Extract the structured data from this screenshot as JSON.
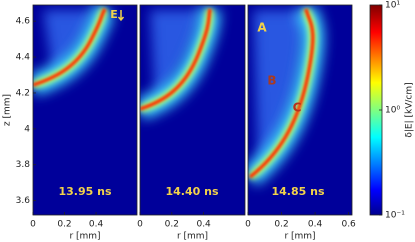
{
  "chart_data": [
    {
      "type": "heatmap",
      "xlabel": "r [mm]",
      "ylabel": "z [mm]",
      "xlim": [
        0,
        0.66
      ],
      "ylim": [
        3.52,
        4.69
      ],
      "xticks": [
        0,
        0.2,
        0.4
      ],
      "yticks": [
        3.6,
        3.8,
        4,
        4.2,
        4.4,
        4.6
      ],
      "annotations": [
        {
          "text": "13.95 ns",
          "color": "#f2d24a"
        },
        {
          "text": "E",
          "color": "#f2d24a"
        }
      ]
    },
    {
      "type": "heatmap",
      "xlabel": "r [mm]",
      "xlim": [
        0,
        0.66
      ],
      "ylim": [
        3.52,
        4.69
      ],
      "xticks": [
        0,
        0.2,
        0.4
      ],
      "annotations": [
        {
          "text": "14.40 ns",
          "color": "#f2d24a"
        }
      ]
    },
    {
      "type": "heatmap",
      "xlabel": "r [mm]",
      "xlim": [
        0,
        0.62
      ],
      "ylim": [
        3.52,
        4.69
      ],
      "xticks": [
        0,
        0.2,
        0.4,
        0.6
      ],
      "annotations": [
        {
          "text": "14.85 ns",
          "color": "#f2d24a"
        },
        {
          "text": "A",
          "color": "#f2d24a"
        },
        {
          "text": "B",
          "color": "#a83a22"
        },
        {
          "text": "C",
          "color": "#b8301c"
        }
      ]
    }
  ],
  "colorbar": {
    "label": "δ|E| [kV/cm]",
    "log": true,
    "lim": [
      0.1,
      10
    ],
    "ticks": [
      {
        "value": 10,
        "label": "10¹"
      },
      {
        "value": 1,
        "label": "10⁰"
      },
      {
        "value": 0.1,
        "label": "10⁻¹"
      }
    ]
  }
}
